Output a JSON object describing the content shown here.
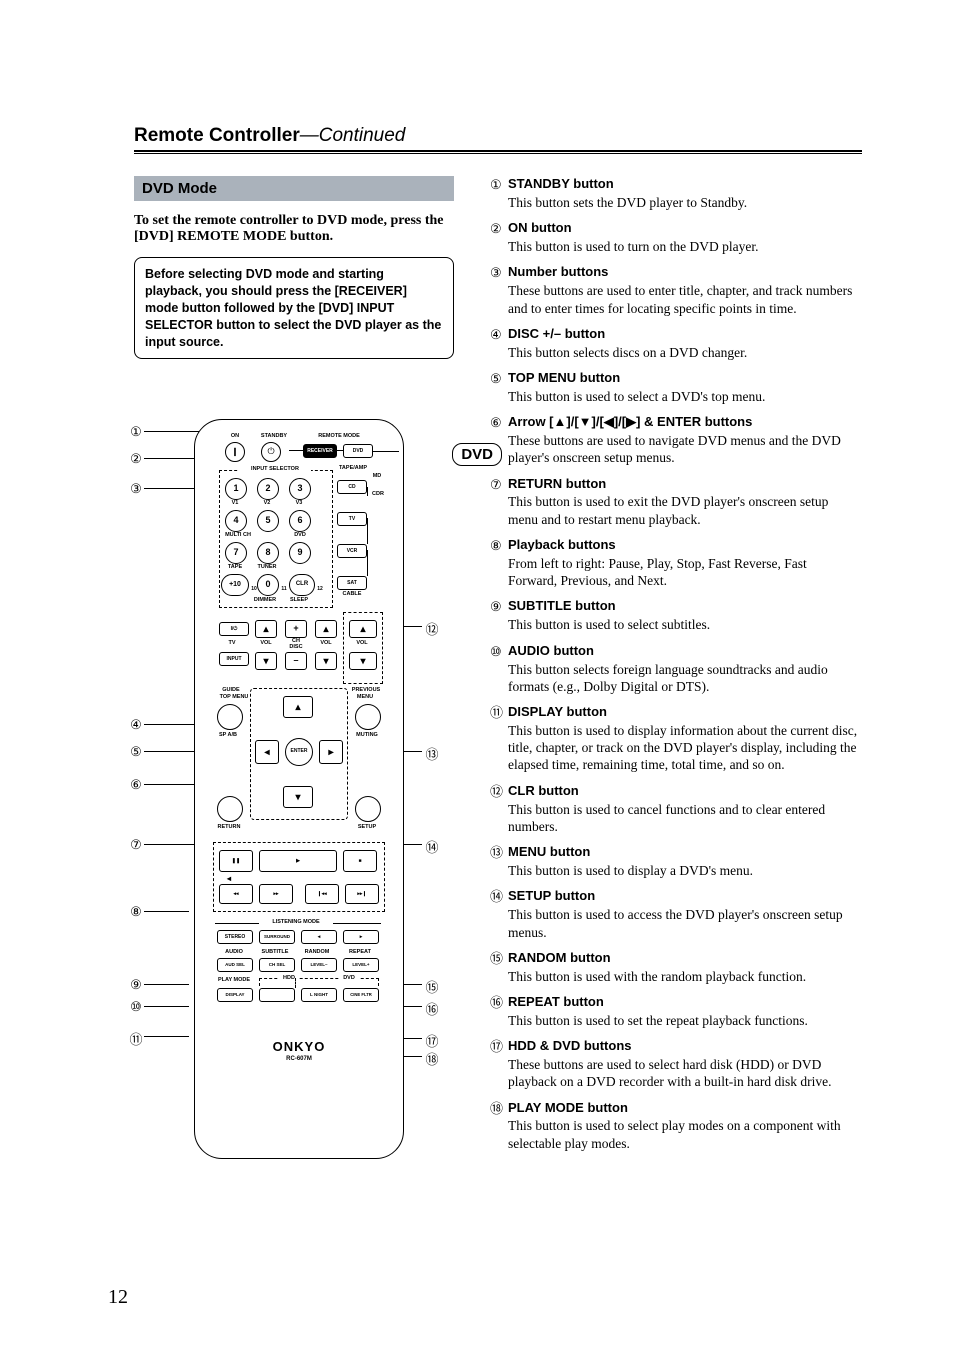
{
  "header": {
    "title": "Remote Controller",
    "continued": "—Continued"
  },
  "page_number": "12",
  "mode": {
    "title": "DVD Mode",
    "intro": "To set the remote controller to DVD mode, press the [DVD] REMOTE MODE button.",
    "note": "Before selecting DVD mode and starting playback, you should press the [RECEIVER] mode button followed by the [DVD] INPUT SELECTOR button to select the DVD player as the input source."
  },
  "dvd_tag": "DVD",
  "remote": {
    "brand": "ONKYO",
    "model": "RC-607M",
    "labels": {
      "on": "ON",
      "standby": "STANDBY",
      "remote_mode": "REMOTE MODE",
      "receiver": "RECEIVER",
      "dvd_mode": "DVD",
      "input_selector": "INPUT SELECTOR",
      "tape_amp": "TAPE/AMP",
      "md": "MD",
      "cd": "CD",
      "cdr": "CDR",
      "tv": "TV",
      "v1": "V1",
      "v2": "V2",
      "v3": "V3",
      "multi_ch": "MULTI CH",
      "dvd_src": "DVD",
      "vcr": "VCR",
      "tape": "TAPE",
      "tuner": "TUNER",
      "sat": "SAT",
      "cable": "CABLE",
      "clr": "CLR",
      "dimmer": "DIMMER",
      "sleep": "SLEEP",
      "tv_col": "TV",
      "vol": "VOL",
      "ch_disc": "CH\nDISC",
      "input": "INPUT",
      "guide": "GUIDE",
      "top_menu": "TOP MENU",
      "previous": "PREVIOUS",
      "menu": "MENU",
      "sp_ab": "SP A/B",
      "muting": "MUTING",
      "enter": "ENTER",
      "return": "RETURN",
      "setup": "SETUP",
      "listening_mode": "LISTENING MODE",
      "stereo": "STEREO",
      "surround": "SURROUND",
      "audio": "AUDIO",
      "subtitle": "SUBTITLE",
      "random": "RANDOM",
      "repeat": "REPEAT",
      "aud_sel": "AUD SEL",
      "ch_sel": "CH SEL",
      "level_m": "LEVEL–",
      "level_p": "LEVEL+",
      "play_mode": "PLAY MODE",
      "hdd": "HDD",
      "dvd_pm": "DVD",
      "display": "DISPLAY",
      "l_night": "L NIGHT",
      "cine_fltr": "CINE FLTR"
    }
  },
  "callouts_left": [
    "①",
    "②",
    "③",
    "④",
    "⑤",
    "⑥",
    "⑦",
    "⑧",
    "⑨",
    "⑩",
    "⑪"
  ],
  "callouts_right": [
    "⑫",
    "⑬",
    "⑭",
    "⑮",
    "⑯",
    "⑰",
    "⑱"
  ],
  "arrow_title_pre": "Arrow [",
  "arrow_title_mid": "]/[",
  "arrow_title_post": "] & ENTER buttons",
  "items": [
    {
      "num": "①",
      "title": "STANDBY button",
      "desc": "This button sets the DVD player to Standby."
    },
    {
      "num": "②",
      "title": "ON button",
      "desc": "This button is used to turn on the DVD player."
    },
    {
      "num": "③",
      "title": "Number buttons",
      "desc": "These buttons are used to enter title, chapter, and track numbers and to enter times for locating specific points in time."
    },
    {
      "num": "④",
      "title": "DISC +/– button",
      "desc": "This button selects discs on a DVD changer."
    },
    {
      "num": "⑤",
      "title": "TOP MENU button",
      "desc": "This button is used to select a DVD's top menu."
    },
    {
      "num": "⑥",
      "title": "",
      "desc": "These buttons are used to navigate DVD menus and the DVD player's onscreen setup menus.",
      "special": "arrows"
    },
    {
      "num": "⑦",
      "title": "RETURN button",
      "desc": "This button is used to exit the DVD player's onscreen setup menu and to restart menu playback."
    },
    {
      "num": "⑧",
      "title": "Playback buttons",
      "desc": "From left to right: Pause, Play, Stop, Fast Reverse, Fast Forward, Previous, and Next."
    },
    {
      "num": "⑨",
      "title": "SUBTITLE button",
      "desc": "This button is used to select subtitles."
    },
    {
      "num": "⑩",
      "title": "AUDIO button",
      "desc": "This button selects foreign language soundtracks and audio formats (e.g., Dolby Digital or DTS)."
    },
    {
      "num": "⑪",
      "title": "DISPLAY button",
      "desc": "This button is used to display information about the current disc, title, chapter, or track on the DVD player's display, including the elapsed time, remaining time, total time, and so on."
    },
    {
      "num": "⑫",
      "title": "CLR button",
      "desc": "This button is used to cancel functions and to clear entered numbers."
    },
    {
      "num": "⑬",
      "title": "MENU button",
      "desc": "This button is used to display a DVD's menu."
    },
    {
      "num": "⑭",
      "title": "SETUP button",
      "desc": "This button is used to access the DVD player's onscreen setup menus."
    },
    {
      "num": "⑮",
      "title": "RANDOM button",
      "desc": "This button is used with the random playback function."
    },
    {
      "num": "⑯",
      "title": "REPEAT button",
      "desc": "This button is used to set the repeat playback functions."
    },
    {
      "num": "⑰",
      "title": "HDD & DVD buttons",
      "desc": "These buttons are used to select hard disk (HDD) or DVD playback on a DVD recorder with a built-in hard disk drive."
    },
    {
      "num": "⑱",
      "title": "PLAY MODE button",
      "desc": "This button is used to select play modes on a component with selectable play modes."
    }
  ]
}
